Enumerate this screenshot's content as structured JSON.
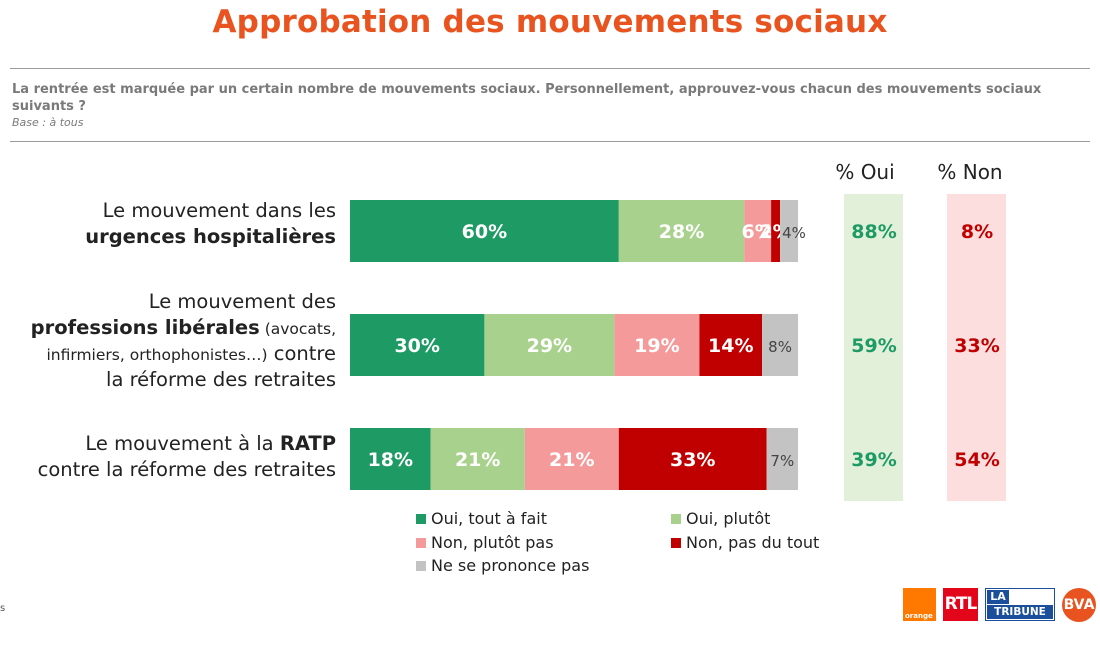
{
  "title": "Approbation des mouvements sociaux",
  "question": "La rentrée est marquée par un certain nombre de mouvements sociaux. Personnellement, approuvez-vous chacun des mouvements sociaux suivants ?",
  "base": "Base : à tous",
  "footnote": "s",
  "columns": {
    "oui": "% Oui",
    "non": "% Non"
  },
  "colors": {
    "tout_a_fait": "#1e9a64",
    "plutot": "#a9d18e",
    "plutot_pas": "#f59a9a",
    "pas_du_tout": "#c00000",
    "nsp": "#c3c3c3",
    "oui_col_bg": "#e2f0d9",
    "non_col_bg": "#fcdede",
    "oui_text": "#1e9a64",
    "non_text": "#c00000"
  },
  "rows": [
    {
      "label_lines": [
        [
          {
            "t": "Le mouvement dans les",
            "b": false,
            "s": false
          }
        ],
        [
          {
            "t": "urgences hospitalières",
            "b": true,
            "s": false
          }
        ]
      ],
      "oui": "88%",
      "non": "8%"
    },
    {
      "label_lines": [
        [
          {
            "t": "Le mouvement des",
            "b": false,
            "s": false
          }
        ],
        [
          {
            "t": "professions libérales",
            "b": true,
            "s": false
          },
          {
            "t": " (avocats,",
            "b": false,
            "s": true
          }
        ],
        [
          {
            "t": "infirmiers, orthophonistes…)",
            "b": false,
            "s": true
          },
          {
            "t": " contre",
            "b": false,
            "s": false
          }
        ],
        [
          {
            "t": "la réforme des retraites",
            "b": false,
            "s": false
          }
        ]
      ],
      "oui": "59%",
      "non": "33%"
    },
    {
      "label_lines": [
        [
          {
            "t": "Le mouvement à la ",
            "b": false,
            "s": false
          },
          {
            "t": "RATP",
            "b": true,
            "s": false
          }
        ],
        [
          {
            "t": "contre la réforme des retraites",
            "b": false,
            "s": false
          }
        ]
      ],
      "oui": "39%",
      "non": "54%"
    }
  ],
  "legend": [
    {
      "label": "Oui, tout à fait",
      "color": "#1e9a64"
    },
    {
      "label": "Oui, plutôt",
      "color": "#a9d18e"
    },
    {
      "label": "Non, plutôt pas",
      "color": "#f59a9a"
    },
    {
      "label": "Non, pas du tout",
      "color": "#c00000"
    },
    {
      "label": "Ne se prononce pas",
      "color": "#c3c3c3"
    }
  ],
  "logos": {
    "orange": "orange",
    "rtl": "RTL",
    "tribune_la": "LA",
    "tribune_name": "TRIBUNE",
    "bva": "BVA"
  },
  "chart_data": {
    "type": "bar",
    "orientation": "horizontal-stacked",
    "categories": [
      "Le mouvement dans les urgences hospitalières",
      "Le mouvement des professions libérales (avocats, infirmiers, orthophonistes…) contre la réforme des retraites",
      "Le mouvement à la RATP contre la réforme des retraites"
    ],
    "series": [
      {
        "name": "Oui, tout à fait",
        "values": [
          60,
          30,
          18
        ],
        "labels": [
          "60%",
          "30%",
          "18%"
        ]
      },
      {
        "name": "Oui, plutôt",
        "values": [
          28,
          29,
          21
        ],
        "labels": [
          "28%",
          "29%",
          "21%"
        ]
      },
      {
        "name": "Non, plutôt pas",
        "values": [
          6,
          19,
          21
        ],
        "labels": [
          "6%",
          "19%",
          "21%"
        ]
      },
      {
        "name": "Non, pas du tout",
        "values": [
          2,
          14,
          33
        ],
        "labels": [
          "2%",
          "14%",
          "33%"
        ]
      },
      {
        "name": "Ne se prononce pas",
        "values": [
          4,
          8,
          7
        ],
        "labels": [
          "4%",
          "8%",
          "7%"
        ]
      }
    ],
    "xlim": [
      0,
      100
    ],
    "legend_position": "bottom",
    "summary": {
      "oui": [
        88,
        59,
        39
      ],
      "non": [
        8,
        33,
        54
      ]
    }
  }
}
